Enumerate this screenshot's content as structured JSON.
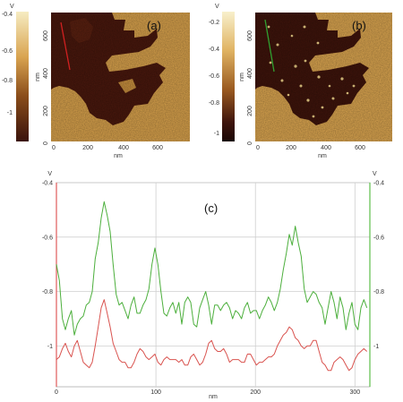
{
  "panels": [
    {
      "label": "(a)",
      "colorbar_unit": "V",
      "colorbar_ticks": [
        "-0.4",
        "-0.6",
        "-0.8",
        "-1"
      ],
      "xlabel": "nm",
      "ylabel": "nm",
      "x_ticks": [
        "0",
        "200",
        "400",
        "600"
      ],
      "y_ticks": [
        "0",
        "200",
        "400",
        "600"
      ],
      "line_color": "#d02020"
    },
    {
      "label": "(b)",
      "colorbar_unit": "V",
      "colorbar_ticks": [
        "-0.2",
        "-0.4",
        "-0.6",
        "-0.8",
        "-1"
      ],
      "xlabel": "nm",
      "ylabel": "nm",
      "x_ticks": [
        "0",
        "200",
        "400",
        "600"
      ],
      "y_ticks": [
        "0",
        "200",
        "400",
        "600"
      ],
      "line_color": "#30a030"
    }
  ],
  "chart_data": {
    "type": "line",
    "label": "(c)",
    "xlabel": "nm",
    "ylabel_left": "V",
    "ylabel_right": "V",
    "x_ticks": [
      "0",
      "100",
      "200",
      "300"
    ],
    "y_ticks_left": [
      "-0.4",
      "-0.6",
      "-0.8",
      "-1"
    ],
    "y_ticks_right": [
      "-0.4",
      "-0.6",
      "-0.8",
      "-1"
    ],
    "xlim": [
      0,
      315
    ],
    "ylim": [
      -1.15,
      -0.4
    ],
    "grid": true,
    "series": [
      {
        "color": "#4caf3c",
        "x": [
          0,
          3,
          6,
          9,
          12,
          15,
          18,
          21,
          24,
          27,
          30,
          33,
          36,
          39,
          42,
          45,
          48,
          51,
          54,
          57,
          60,
          63,
          66,
          69,
          72,
          75,
          78,
          81,
          84,
          87,
          90,
          93,
          96,
          99,
          102,
          105,
          108,
          111,
          114,
          117,
          120,
          123,
          126,
          129,
          132,
          135,
          138,
          141,
          144,
          147,
          150,
          153,
          156,
          159,
          162,
          165,
          168,
          171,
          174,
          177,
          180,
          183,
          186,
          189,
          192,
          195,
          198,
          201,
          204,
          207,
          210,
          213,
          216,
          219,
          222,
          225,
          228,
          231,
          234,
          237,
          240,
          243,
          246,
          249,
          252,
          255,
          258,
          261,
          264,
          267,
          270,
          273,
          276,
          279,
          282,
          285,
          288,
          291,
          294,
          297,
          300,
          303,
          306,
          309,
          312
        ],
        "y": [
          -0.7,
          -0.76,
          -0.9,
          -0.94,
          -0.9,
          -0.87,
          -0.96,
          -0.92,
          -0.9,
          -0.89,
          -0.85,
          -0.84,
          -0.8,
          -0.68,
          -0.62,
          -0.53,
          -0.47,
          -0.52,
          -0.58,
          -0.7,
          -0.81,
          -0.85,
          -0.84,
          -0.87,
          -0.9,
          -0.85,
          -0.82,
          -0.88,
          -0.88,
          -0.85,
          -0.83,
          -0.79,
          -0.7,
          -0.64,
          -0.7,
          -0.8,
          -0.88,
          -0.89,
          -0.86,
          -0.84,
          -0.88,
          -0.84,
          -0.92,
          -0.84,
          -0.82,
          -0.84,
          -0.92,
          -0.93,
          -0.86,
          -0.83,
          -0.8,
          -0.85,
          -0.92,
          -0.85,
          -0.85,
          -0.87,
          -0.85,
          -0.84,
          -0.86,
          -0.9,
          -0.87,
          -0.88,
          -0.9,
          -0.86,
          -0.84,
          -0.88,
          -0.87,
          -0.87,
          -0.9,
          -0.87,
          -0.85,
          -0.82,
          -0.84,
          -0.87,
          -0.84,
          -0.79,
          -0.72,
          -0.66,
          -0.59,
          -0.63,
          -0.56,
          -0.62,
          -0.67,
          -0.79,
          -0.84,
          -0.82,
          -0.8,
          -0.81,
          -0.84,
          -0.86,
          -0.92,
          -0.86,
          -0.8,
          -0.84,
          -0.9,
          -0.82,
          -0.86,
          -0.94,
          -0.88,
          -0.84,
          -0.92,
          -0.94,
          -0.86,
          -0.83,
          -0.86
        ]
      },
      {
        "color": "#d9534f",
        "x": [
          0,
          3,
          6,
          9,
          12,
          15,
          18,
          21,
          24,
          27,
          30,
          33,
          36,
          39,
          42,
          45,
          48,
          51,
          54,
          57,
          60,
          63,
          66,
          69,
          72,
          75,
          78,
          81,
          84,
          87,
          90,
          93,
          96,
          99,
          102,
          105,
          108,
          111,
          114,
          117,
          120,
          123,
          126,
          129,
          132,
          135,
          138,
          141,
          144,
          147,
          150,
          153,
          156,
          159,
          162,
          165,
          168,
          171,
          174,
          177,
          180,
          183,
          186,
          189,
          192,
          195,
          198,
          201,
          204,
          207,
          210,
          213,
          216,
          219,
          222,
          225,
          228,
          231,
          234,
          237,
          240,
          243,
          246,
          249,
          252,
          255,
          258,
          261,
          264,
          267,
          270,
          273,
          276,
          279,
          282,
          285,
          288,
          291,
          294,
          297,
          300,
          303,
          306,
          309,
          312
        ],
        "y": [
          -1.05,
          -1.04,
          -1.01,
          -0.99,
          -1.02,
          -1.04,
          -1.0,
          -0.98,
          -1.02,
          -1.06,
          -1.07,
          -1.08,
          -1.06,
          -1.0,
          -0.93,
          -0.86,
          -0.83,
          -0.88,
          -0.93,
          -0.99,
          -1.02,
          -1.05,
          -1.06,
          -1.06,
          -1.08,
          -1.08,
          -1.06,
          -1.03,
          -1.01,
          -1.02,
          -1.04,
          -1.05,
          -1.04,
          -1.03,
          -1.06,
          -1.07,
          -1.05,
          -1.04,
          -1.05,
          -1.05,
          -1.05,
          -1.06,
          -1.05,
          -1.07,
          -1.07,
          -1.04,
          -1.03,
          -1.05,
          -1.07,
          -1.06,
          -1.03,
          -0.99,
          -0.98,
          -1.01,
          -1.02,
          -1.02,
          -1.01,
          -1.03,
          -1.06,
          -1.05,
          -1.05,
          -1.05,
          -1.06,
          -1.06,
          -1.03,
          -1.03,
          -1.05,
          -1.07,
          -1.06,
          -1.06,
          -1.05,
          -1.04,
          -1.04,
          -1.03,
          -1.0,
          -0.98,
          -0.96,
          -0.95,
          -0.93,
          -0.94,
          -0.97,
          -0.98,
          -1.0,
          -1.01,
          -1.0,
          -1.0,
          -0.98,
          -0.98,
          -1.02,
          -1.06,
          -1.07,
          -1.09,
          -1.09,
          -1.06,
          -1.05,
          -1.04,
          -1.05,
          -1.07,
          -1.09,
          -1.08,
          -1.05,
          -1.03,
          -1.02,
          -1.01,
          -1.02
        ]
      }
    ]
  }
}
